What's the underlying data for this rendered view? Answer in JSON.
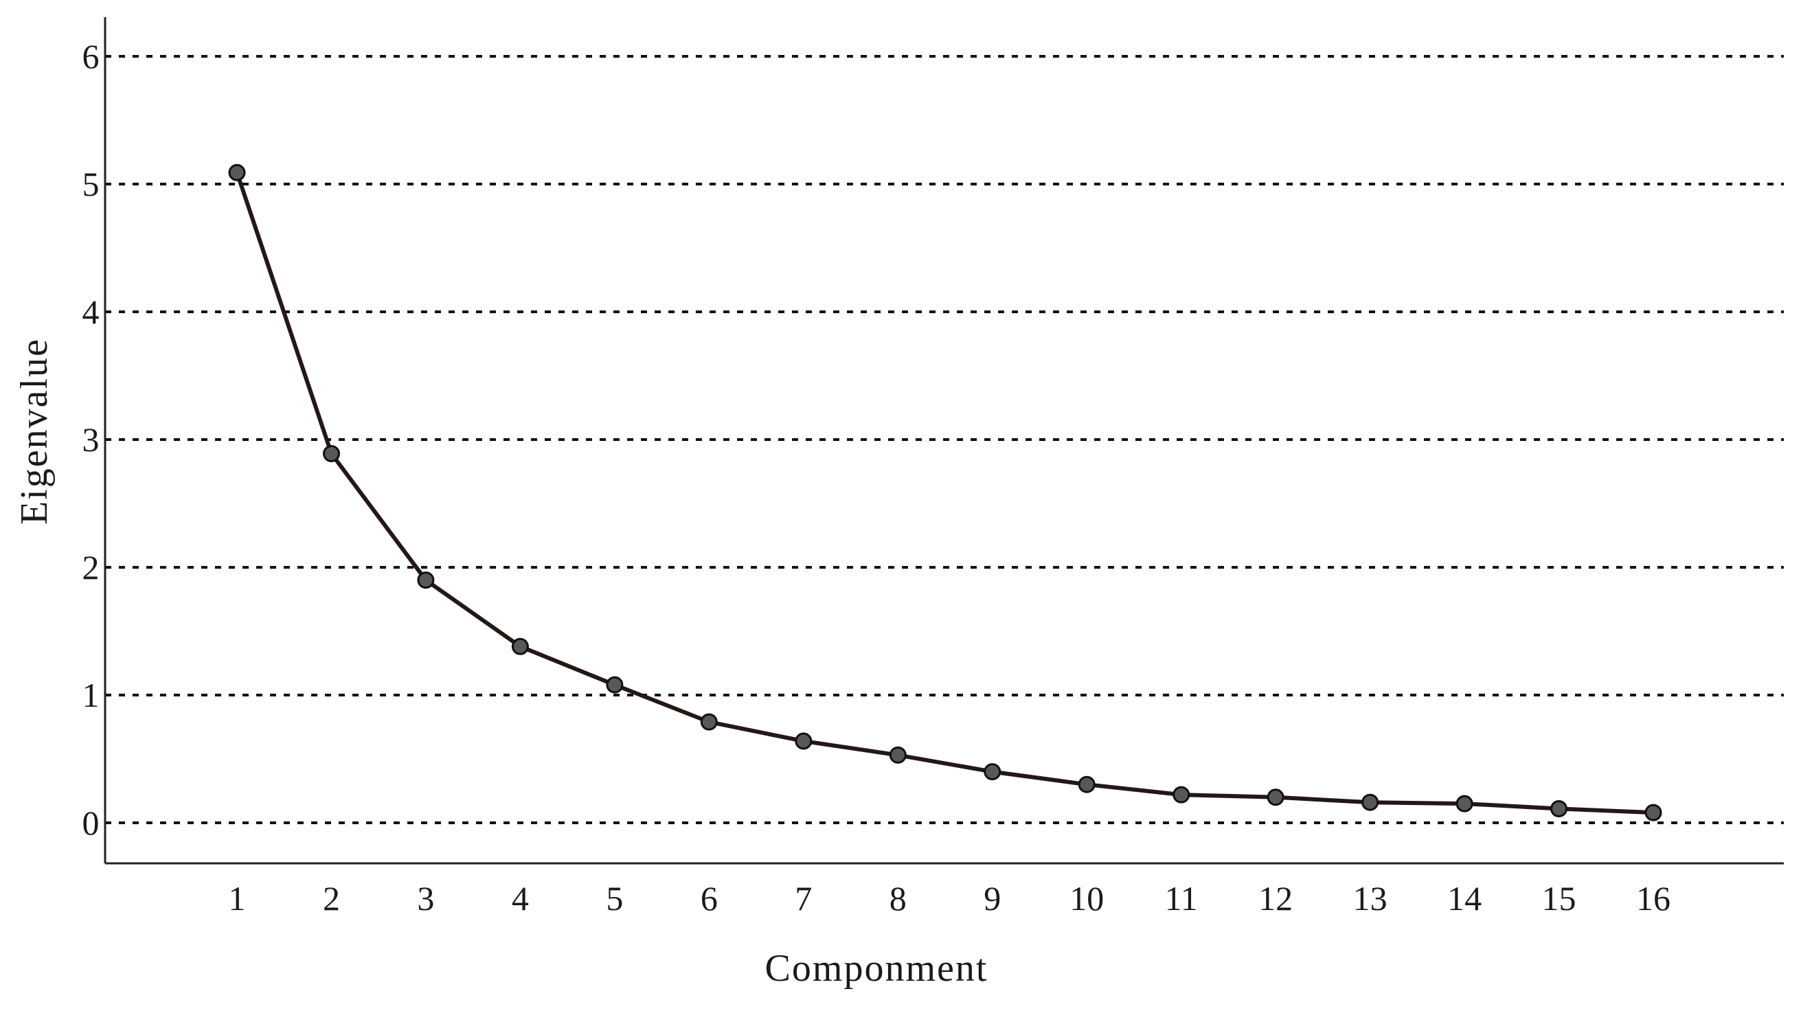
{
  "chart_data": {
    "type": "line",
    "title": "",
    "xlabel": "Componment",
    "ylabel": "Eigenvalue",
    "x": [
      1,
      2,
      3,
      4,
      5,
      6,
      7,
      8,
      9,
      10,
      11,
      12,
      13,
      14,
      15,
      16
    ],
    "series": [
      {
        "values": [
          5.09,
          2.89,
          1.9,
          1.38,
          1.08,
          0.79,
          0.64,
          0.53,
          0.4,
          0.3,
          0.22,
          0.2,
          0.16,
          0.15,
          0.11,
          0.08
        ]
      }
    ],
    "xticks": [
      "1",
      "2",
      "3",
      "4",
      "5",
      "6",
      "7",
      "8",
      "9",
      "10",
      "11",
      "12",
      "13",
      "14",
      "15",
      "16"
    ],
    "yticks": [
      "0",
      "1",
      "2",
      "3",
      "4",
      "5",
      "6"
    ],
    "ylim": [
      0,
      6
    ],
    "grid": "horizontal dashed",
    "legend": "none",
    "colors": {
      "line": "#231815",
      "marker_fill": "#595757",
      "grid": "#111111"
    }
  }
}
